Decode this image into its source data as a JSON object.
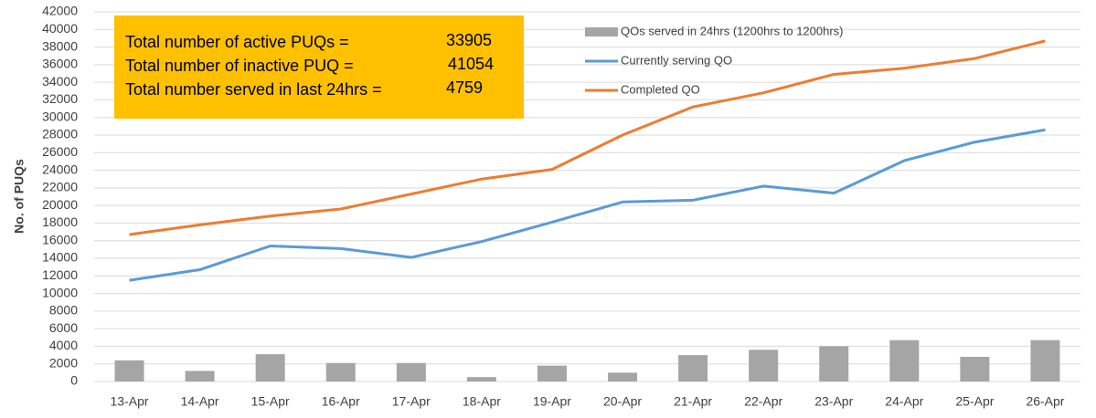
{
  "chart_data": {
    "type": "combo",
    "y_label": "No. of PUQs",
    "categories": [
      "13-Apr",
      "14-Apr",
      "15-Apr",
      "16-Apr",
      "17-Apr",
      "18-Apr",
      "19-Apr",
      "20-Apr",
      "21-Apr",
      "22-Apr",
      "23-Apr",
      "24-Apr",
      "25-Apr",
      "26-Apr"
    ],
    "series": [
      {
        "name": "QOs served in 24hrs (1200hrs to 1200hrs)",
        "type": "bar",
        "color": "#a5a5a5",
        "values": [
          2400,
          1200,
          3100,
          2100,
          2100,
          500,
          1800,
          1000,
          3000,
          3600,
          4000,
          4700,
          2800,
          4700
        ]
      },
      {
        "name": "Currently serving QO",
        "type": "line",
        "color": "#5b9bd5",
        "values": [
          11500,
          12700,
          15400,
          15100,
          14100,
          15900,
          18100,
          20400,
          20600,
          22200,
          21400,
          25100,
          27200,
          28600
        ]
      },
      {
        "name": "Completed QO",
        "type": "line",
        "color": "#ed7d31",
        "values": [
          16700,
          17800,
          18800,
          19600,
          21300,
          23000,
          24100,
          28000,
          31200,
          32800,
          34900,
          35600,
          36700,
          38700
        ]
      }
    ],
    "ylim": [
      0,
      42000
    ],
    "yticks": [
      0,
      2000,
      4000,
      6000,
      8000,
      10000,
      12000,
      14000,
      16000,
      18000,
      20000,
      22000,
      24000,
      26000,
      28000,
      30000,
      32000,
      34000,
      36000,
      38000,
      40000,
      42000
    ],
    "grid": true,
    "annotations": [
      {
        "label": "Total number of active PUQs =",
        "value": 33905
      },
      {
        "label": "Total number of inactive PUQ =",
        "value": 41054
      },
      {
        "label": "Total number served in last 24hrs =",
        "value": 4759
      }
    ],
    "annotation_color": "#ffc000"
  }
}
